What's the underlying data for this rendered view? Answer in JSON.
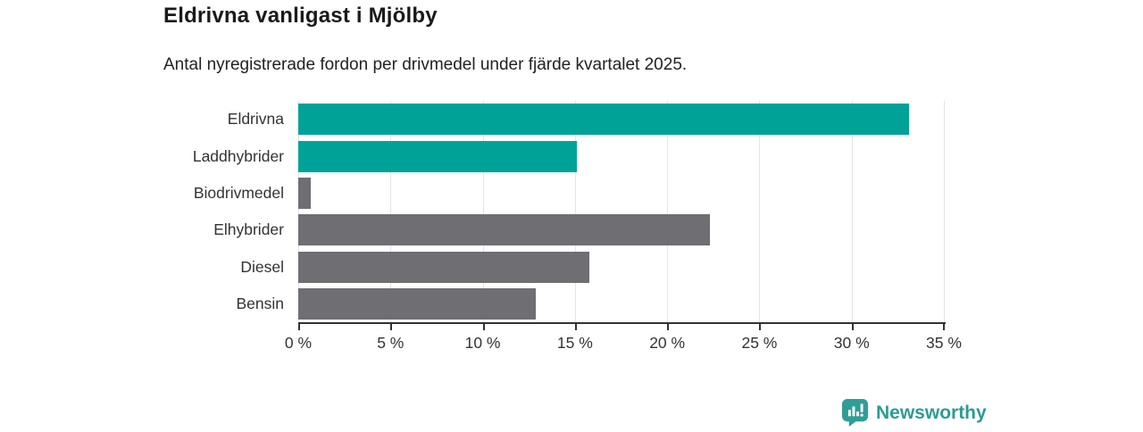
{
  "header": {
    "title": "Eldrivna vanligast i Mjölby",
    "subtitle": "Antal nyregistrerade fordon per drivmedel under fjärde kvartalet 2025."
  },
  "chart_data": {
    "type": "bar",
    "orientation": "horizontal",
    "title": "Eldrivna vanligast i Mjölby",
    "subtitle": "Antal nyregistrerade fordon per drivmedel under fjärde kvartalet 2025.",
    "categories": [
      "Eldrivna",
      "Laddhybrider",
      "Biodrivmedel",
      "Elhybrider",
      "Diesel",
      "Bensin"
    ],
    "values": [
      33.1,
      15.1,
      0.7,
      22.3,
      15.8,
      12.9
    ],
    "bar_colors": [
      "#00a298",
      "#00a298",
      "#6e6e73",
      "#6e6e73",
      "#6e6e73",
      "#6e6e73"
    ],
    "xlabel": "",
    "ylabel": "",
    "xlim": [
      0,
      35
    ],
    "x_ticks": [
      "0 %",
      "5 %",
      "10 %",
      "15 %",
      "20 %",
      "25 %",
      "30 %",
      "35 %"
    ],
    "unit": "%",
    "grid": true,
    "legend": false,
    "colors": {
      "accent": "#00a298",
      "neutral": "#6e6e73",
      "grid": "#e4e4e4",
      "axis": "#333333"
    }
  },
  "branding": {
    "logo_text": "Newsworthy",
    "logo_color": "#2b9c94",
    "icon": "bar-chart-badge-icon"
  }
}
